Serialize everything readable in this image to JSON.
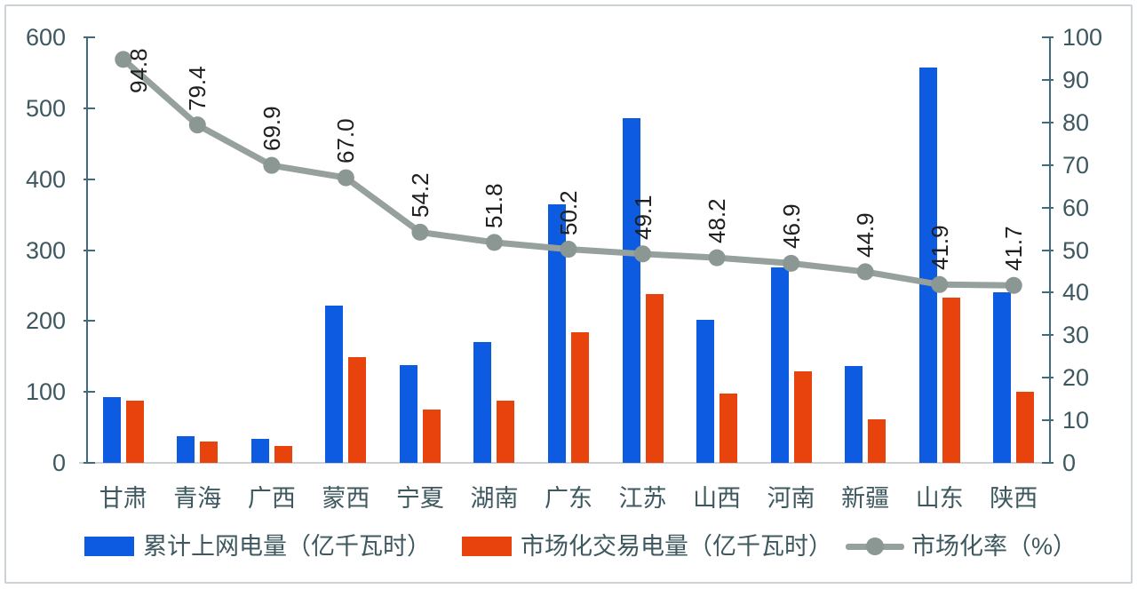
{
  "chart_data": {
    "type": "bar",
    "subtype": "bar-line-combo",
    "title": "",
    "categories": [
      "甘肃",
      "青海",
      "广西",
      "蒙西",
      "宁夏",
      "湖南",
      "广东",
      "江苏",
      "山西",
      "河南",
      "新疆",
      "山东",
      "陕西"
    ],
    "series": [
      {
        "name": "累计上网电量（亿千瓦时）",
        "type": "bar",
        "axis": "left",
        "color": "#0d5be0",
        "values": [
          93,
          37,
          34,
          222,
          138,
          170,
          365,
          486,
          202,
          275,
          136,
          557,
          240
        ]
      },
      {
        "name": "市场化交易电量（亿千瓦时）",
        "type": "bar",
        "axis": "left",
        "color": "#e8420d",
        "values": [
          88,
          30,
          24,
          149,
          75,
          88,
          184,
          238,
          98,
          129,
          62,
          233,
          100
        ]
      },
      {
        "name": "市场化率（%）",
        "type": "line",
        "axis": "right",
        "color": "#96a09c",
        "marker_color": "#8a9793",
        "values": [
          94.8,
          79.4,
          69.9,
          67.0,
          54.2,
          51.8,
          50.2,
          49.1,
          48.2,
          46.9,
          44.9,
          41.9,
          41.7
        ],
        "labels": [
          "94.8",
          "79.4",
          "69.9",
          "67.0",
          "54.2",
          "51.8",
          "50.2",
          "49.1",
          "48.2",
          "46.9",
          "44.9",
          "41.9",
          "41.7"
        ]
      }
    ],
    "left_axis": {
      "min": 0,
      "max": 600,
      "step": 100,
      "ticks": [
        "0",
        "100",
        "200",
        "300",
        "400",
        "500",
        "600"
      ]
    },
    "right_axis": {
      "min": 0,
      "max": 100,
      "step": 10,
      "ticks": [
        "0",
        "10",
        "20",
        "30",
        "40",
        "50",
        "60",
        "70",
        "80",
        "90",
        "100"
      ]
    },
    "grid": false,
    "legend_position": "bottom",
    "colors": {
      "axis": "#3f6b7d",
      "axis_labels": "#3e5860",
      "baseline": "#cbd0d3",
      "data_label": "#1f1f1f",
      "frame": "#ccd3d6"
    }
  }
}
